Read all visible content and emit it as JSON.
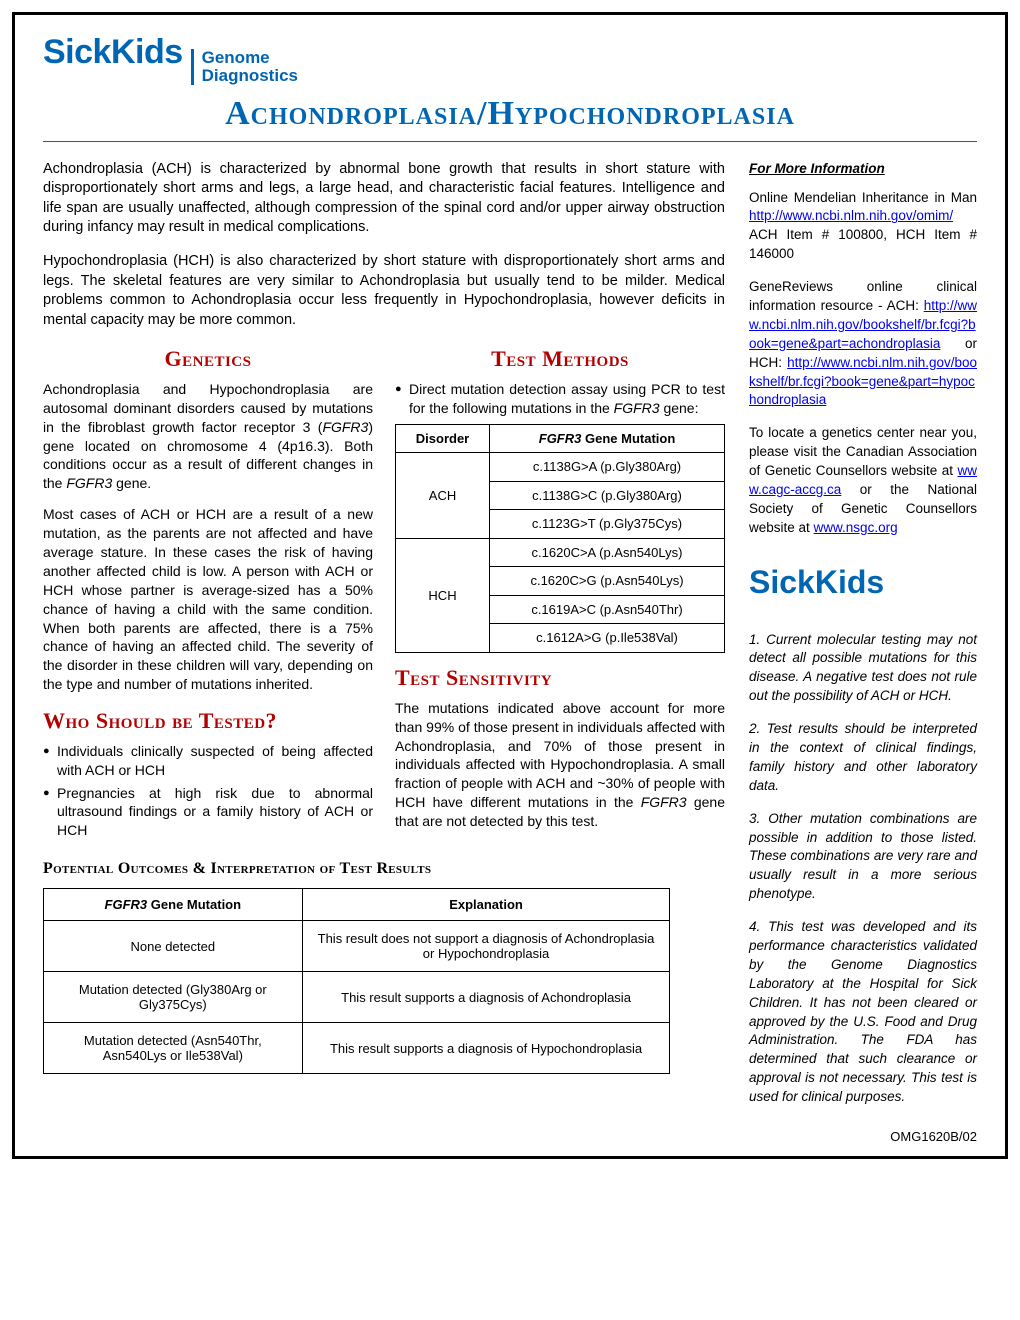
{
  "logo": {
    "brand": "SickKids",
    "sub1": "Genome",
    "sub2": "Diagnostics"
  },
  "title": "Achondroplasia/Hypochondroplasia",
  "intro": {
    "p1": "Achondroplasia (ACH) is characterized by abnormal bone growth that results in short stature with disproportionately short arms and legs, a large head, and characteristic facial features. Intelligence and life span are usually unaffected, although compression of the spinal cord and/or upper airway obstruction during infancy may result in medical complications.",
    "p2": "Hypochondroplasia (HCH) is also characterized by short stature with disproportionately short arms and legs. The skeletal features are very similar to Achondroplasia but usually tend to be milder. Medical problems common to Achondroplasia occur less frequently in Hypochondroplasia, however deficits in mental capacity may be more common."
  },
  "genetics": {
    "head": "Genetics",
    "p1a": "Achondroplasia and Hypochondroplasia are autosomal dominant disorders caused by mutations in the fibroblast growth factor receptor 3 (",
    "p1b": "FGFR3",
    "p1c": ") gene located on chromosome 4 (4p16.3). Both conditions occur as a result of different changes in the ",
    "p1d": "FGFR3",
    "p1e": " gene.",
    "p2": "Most cases of ACH or HCH are a result of a new mutation, as the parents are not affected and have average stature. In these cases the risk of having another affected child is low. A person with ACH or HCH whose partner is average-sized has a 50% chance of having a child with the same condition. When both parents are affected, there is a 75% chance of having an affected child. The severity of the disorder in these children will vary, depending on the type and number of mutations inherited."
  },
  "who": {
    "head": "Who Should be Tested?",
    "b1": "Individuals clinically suspected of being affected with ACH or HCH",
    "b2": "Pregnancies at high risk due to abnormal ultrasound findings or a family history of ACH or HCH"
  },
  "methods": {
    "head": "Test Methods",
    "leadA": "Direct mutation detection assay using PCR to test for the following mutations in the ",
    "leadB": "FGFR3",
    "leadC": " gene:",
    "th1": "Disorder",
    "th2b": "FGFR3",
    "th2c": " Gene Mutation",
    "rows": [
      {
        "d": "ACH",
        "m": "c.1138G>A (p.Gly380Arg)"
      },
      {
        "d": "",
        "m": "c.1138G>C (p.Gly380Arg)"
      },
      {
        "d": "",
        "m": "c.1123G>T (p.Gly375Cys)"
      },
      {
        "d": "HCH",
        "m": "c.1620C>A (p.Asn540Lys)"
      },
      {
        "d": "",
        "m": "c.1620C>G (p.Asn540Lys)"
      },
      {
        "d": "",
        "m": "c.1619A>C (p.Asn540Thr)"
      },
      {
        "d": "",
        "m": "c.1612A>G (p.Ile538Val)"
      }
    ]
  },
  "sensitivity": {
    "head": "Test Sensitivity",
    "pA": "The mutations indicated above account for more than 99% of those present in individuals affected with Achondroplasia, and 70% of those present in individuals affected with Hypochondroplasia. A small fraction of people with ACH and ~30% of people with HCH have different mutations in the ",
    "pB": "FGFR3",
    "pC": " gene that are not detected by this test."
  },
  "outcomes": {
    "head": "Potential Outcomes & Interpretation of Test Results",
    "th1b": "FGFR3",
    "th1c": " Gene Mutation",
    "th2": "Explanation",
    "rows": [
      {
        "m": "None detected",
        "e": "This result does not support a diagnosis of Achondroplasia or Hypochondroplasia"
      },
      {
        "m": "Mutation detected (Gly380Arg or Gly375Cys)",
        "e": "This result supports a diagnosis of Achondroplasia"
      },
      {
        "m": "Mutation detected (Asn540Thr, Asn540Lys or Ile538Val)",
        "e": "This result supports a diagnosis of Hypochondroplasia"
      }
    ]
  },
  "sidebar": {
    "fmih": "For More Information",
    "p1a": "Online Mendelian Inheritance in Man ",
    "p1link": "http://www.ncbi.nlm.nih.gov/omim/",
    "p1b": " ACH Item # 100800, HCH Item # 146000",
    "p2a": "GeneReviews online clinical information resource - ACH: ",
    "p2l1": "http://www.ncbi.nlm.nih.gov/bookshelf/br.fcgi?book=gene&part=achondroplasia",
    "p2b": " or HCH: ",
    "p2l2": "http://www.ncbi.nlm.nih.gov/bookshelf/br.fcgi?book=gene&part=hypochondroplasia",
    "p3a": "To locate a genetics center near you, please visit the Canadian Association of Genetic Counsellors website at ",
    "p3l1": "www.cagc-accg.ca",
    "p3b": " or the National Society of Genetic Counsellors website at ",
    "p3l2": "www.nsgc.org",
    "logo2": "SickKids",
    "n1": "1. Current molecular testing may not detect all possible mutations for this disease. A negative test does not rule out the possibility of ACH or HCH.",
    "n2": "2. Test results should be interpreted in the context of clinical findings, family history and other laboratory data.",
    "n3": "3. Other mutation combinations are possible in addition to those listed. These combinations are very rare and usually result in a more serious phenotype.",
    "n4": "4. This test was developed and its performance characteristics validated by the Genome Diagnostics Laboratory at the Hospital for Sick Children. It has not been cleared or approved by the U.S. Food and Drug Administration. The FDA has determined that such clearance or approval is not necessary. This test is used for clinical purposes."
  },
  "doc_code": "OMG1620B/02"
}
